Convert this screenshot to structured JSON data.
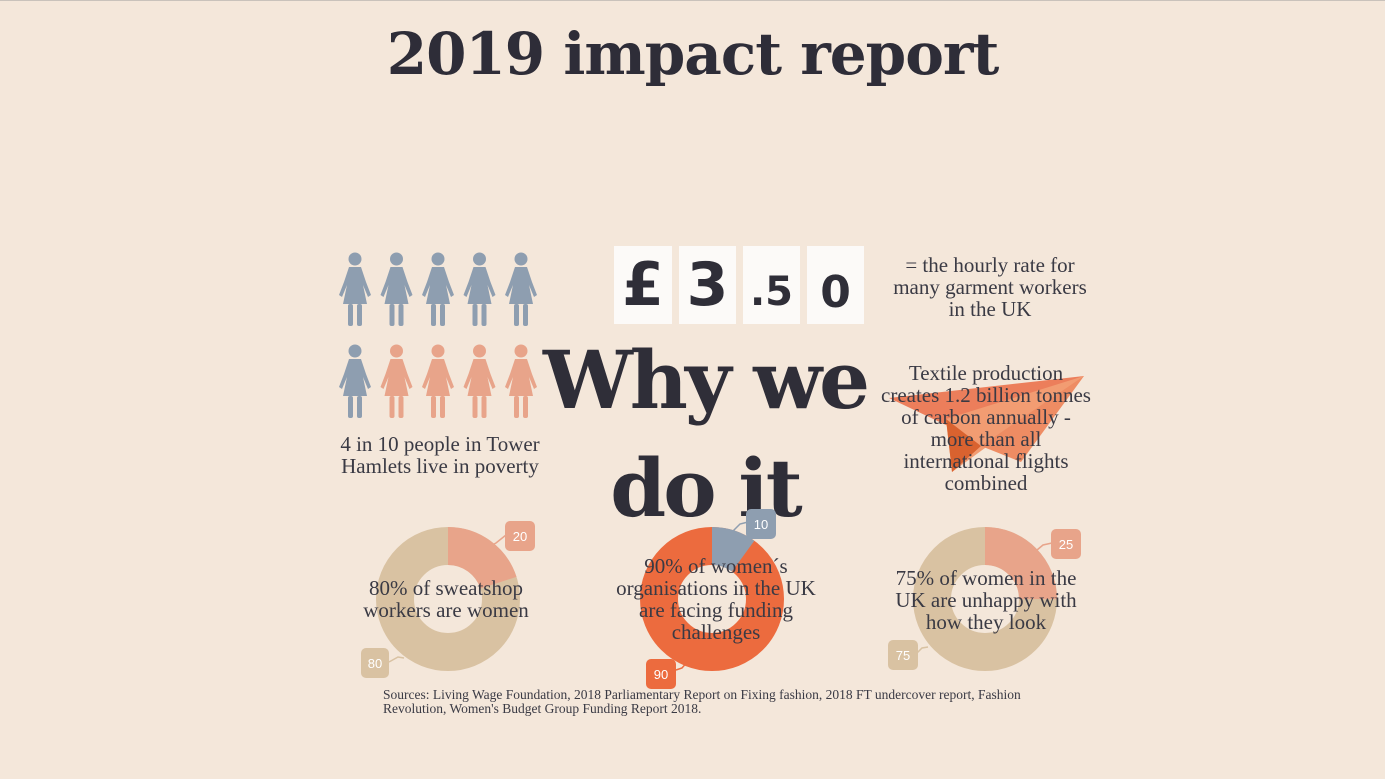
{
  "title": "2019 impact report",
  "headline": {
    "line1": "Why we",
    "line2": "do it"
  },
  "poverty": {
    "caption": "4 in 10 people in Tower Hamlets live in poverty",
    "total": 10,
    "highlighted": 4
  },
  "wage": {
    "digits": [
      "£",
      "3",
      ".5",
      "0"
    ],
    "caption": "= the hourly rate for many garment workers in the UK"
  },
  "carbon": {
    "caption": "Textile production creates 1.2 billion tonnes of carbon annually - more than all international flights combined",
    "icon": "paper-plane-icon"
  },
  "donuts": [
    {
      "caption": "80% of sweatshop workers are women",
      "major": 80,
      "minor": 20,
      "major_label": "80",
      "minor_label": "20",
      "major_color": "#d9c2a2",
      "minor_color": "#e8a48a"
    },
    {
      "caption": "90% of women´s organisations in the UK are facing funding challenges",
      "major": 90,
      "minor": 10,
      "major_label": "90",
      "minor_label": "10",
      "major_color": "#ec6b3e",
      "minor_color": "#8e9eb0"
    },
    {
      "caption": "75% of women in the UK are unhappy with how they look",
      "major": 75,
      "minor": 25,
      "major_label": "75",
      "minor_label": "25",
      "major_color": "#d9c2a2",
      "minor_color": "#e8a48a"
    }
  ],
  "colors": {
    "background": "#f4e7da",
    "text": "#363440",
    "blue_grey": "#8e9eb0",
    "salmon": "#e8a48a",
    "orange": "#ec6b3e",
    "tan": "#d9c2a2"
  },
  "sources": "Sources: Living Wage Foundation, 2018 Parliamentary Report on Fixing fashion, 2018 FT undercover report, Fashion Revolution, Women's Budget Group Funding Report 2018."
}
